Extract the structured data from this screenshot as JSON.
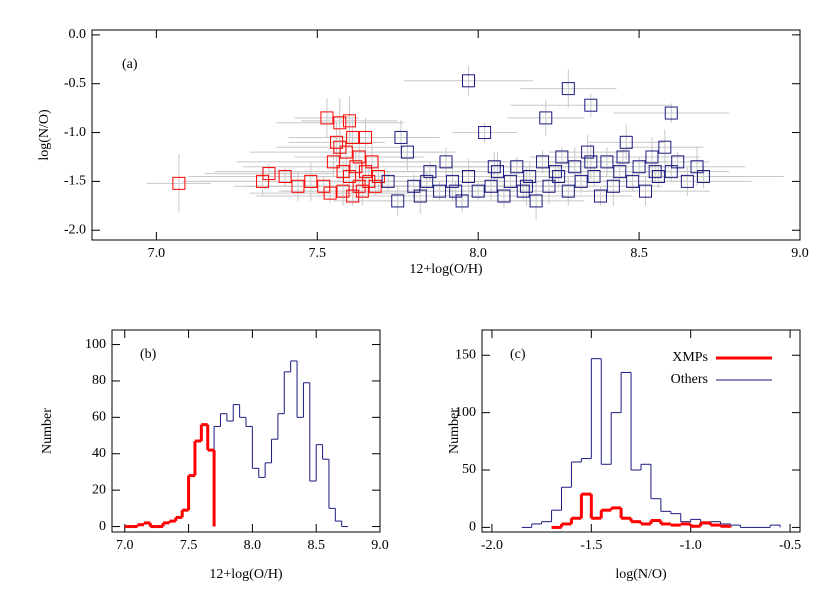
{
  "chart_data": [
    {
      "type": "scatter",
      "panel_label": "(a)",
      "x_label": "12+log(O/H)",
      "y_label": "log(N/O)",
      "xlim": [
        6.8,
        9.0
      ],
      "ylim": [
        -2.1,
        0.05
      ],
      "xticks": [
        {
          "value": 7.0,
          "label": "7.0"
        },
        7.5,
        {
          "value": 8.0,
          "label": "8.0"
        },
        8.5,
        {
          "value": 9.0,
          "label": "9.0"
        }
      ],
      "yticks": [
        {
          "value": 0,
          "label": "0.0"
        },
        -0.5,
        {
          "value": -1.0,
          "label": "-1.0"
        },
        -1.5,
        {
          "value": -2.0,
          "label": "-2.0"
        }
      ],
      "error_color": "#c8c8c8",
      "series": [
        {
          "name": "XMPs",
          "color": "#ff0000",
          "x": [
            7.07,
            7.33,
            7.35,
            7.4,
            7.44,
            7.48,
            7.52,
            7.53,
            7.55,
            7.56,
            7.57,
            7.58,
            7.58,
            7.59,
            7.6,
            7.6,
            7.61,
            7.62,
            7.63,
            7.63,
            7.64,
            7.65,
            7.66,
            7.67,
            7.68,
            7.69,
            7.54,
            7.57,
            7.61,
            7.65
          ],
          "values": [
            -1.52,
            -1.5,
            -1.42,
            -1.45,
            -1.55,
            -1.5,
            -1.55,
            -0.85,
            -1.3,
            -1.1,
            -0.9,
            -1.4,
            -1.6,
            -1.2,
            -0.88,
            -1.45,
            -1.05,
            -1.35,
            -1.55,
            -1.25,
            -1.6,
            -1.4,
            -1.5,
            -1.3,
            -1.55,
            -1.45,
            -1.62,
            -1.15,
            -1.65,
            -1.05
          ],
          "xerr": [
            0.1,
            0.25,
            0.2,
            0.3,
            0.2,
            0.35,
            0.25,
            0.1,
            0.3,
            0.15,
            0.2,
            0.4,
            0.2,
            0.3,
            0.15,
            0.25,
            0.2,
            0.35,
            0.3,
            0.2,
            0.25,
            0.3,
            0.2,
            0.15,
            0.3,
            0.2,
            0.25,
            0.2,
            0.3,
            0.15
          ],
          "yerr": [
            0.3,
            0.15,
            0.1,
            0.1,
            0.15,
            0.2,
            0.1,
            0.2,
            0.15,
            0.2,
            0.25,
            0.1,
            0.15,
            0.2,
            0.25,
            0.1,
            0.2,
            0.15,
            0.1,
            0.2,
            0.15,
            0.1,
            0.15,
            0.2,
            0.1,
            0.15,
            0.1,
            0.2,
            0.1,
            0.2
          ]
        },
        {
          "name": "Others",
          "color": "#1a1a80",
          "x": [
            7.72,
            7.75,
            7.78,
            7.8,
            7.82,
            7.85,
            7.88,
            7.9,
            7.92,
            7.95,
            7.97,
            8.0,
            8.02,
            8.04,
            8.06,
            8.08,
            8.1,
            8.12,
            8.14,
            8.16,
            8.18,
            8.2,
            8.22,
            8.24,
            8.26,
            8.28,
            8.3,
            8.32,
            8.34,
            8.36,
            8.38,
            8.4,
            8.42,
            8.44,
            8.46,
            8.48,
            8.5,
            8.52,
            8.54,
            8.56,
            8.58,
            8.6,
            8.62,
            8.65,
            8.68,
            8.7,
            7.76,
            7.84,
            7.93,
            8.05,
            8.15,
            8.25,
            8.35,
            8.45,
            8.55,
            7.97,
            8.28,
            8.35,
            8.21,
            8.6
          ],
          "values": [
            -1.5,
            -1.7,
            -1.2,
            -1.55,
            -1.65,
            -1.4,
            -1.6,
            -1.3,
            -1.5,
            -1.7,
            -1.45,
            -1.6,
            -1.0,
            -1.55,
            -1.4,
            -1.65,
            -1.5,
            -1.35,
            -1.6,
            -1.45,
            -1.7,
            -1.3,
            -1.55,
            -1.4,
            -1.25,
            -1.6,
            -1.35,
            -1.5,
            -1.2,
            -1.45,
            -1.65,
            -1.3,
            -1.55,
            -1.4,
            -1.1,
            -1.5,
            -1.35,
            -1.6,
            -1.25,
            -1.45,
            -1.15,
            -1.4,
            -1.3,
            -1.5,
            -1.35,
            -1.45,
            -1.05,
            -1.5,
            -1.6,
            -1.35,
            -1.55,
            -1.45,
            -1.3,
            -1.25,
            -1.4,
            -0.47,
            -0.55,
            -0.72,
            -0.85,
            -0.8
          ],
          "xerr": [
            0.1,
            0.2,
            0.15,
            0.25,
            0.12,
            0.18,
            0.1,
            0.2,
            0.15,
            0.25,
            0.12,
            0.18,
            0.1,
            0.2,
            0.15,
            0.25,
            0.12,
            0.18,
            0.1,
            0.2,
            0.15,
            0.25,
            0.12,
            0.18,
            0.1,
            0.2,
            0.15,
            0.25,
            0.12,
            0.18,
            0.1,
            0.2,
            0.15,
            0.25,
            0.12,
            0.18,
            0.1,
            0.2,
            0.15,
            0.25,
            0.12,
            0.18,
            0.1,
            0.2,
            0.15,
            0.25,
            0.12,
            0.18,
            0.1,
            0.2,
            0.15,
            0.25,
            0.12,
            0.18,
            0.1,
            0.2,
            0.15,
            0.25,
            0.12,
            0.18
          ],
          "yerr": [
            0.1,
            0.15,
            0.2,
            0.12,
            0.18,
            0.1,
            0.1,
            0.15,
            0.2,
            0.12,
            0.18,
            0.1,
            0.1,
            0.15,
            0.2,
            0.12,
            0.18,
            0.1,
            0.1,
            0.15,
            0.2,
            0.12,
            0.18,
            0.1,
            0.1,
            0.15,
            0.2,
            0.12,
            0.18,
            0.1,
            0.1,
            0.15,
            0.2,
            0.12,
            0.18,
            0.1,
            0.1,
            0.15,
            0.2,
            0.12,
            0.18,
            0.1,
            0.1,
            0.15,
            0.2,
            0.12,
            0.18,
            0.1,
            0.1,
            0.15,
            0.2,
            0.12,
            0.18,
            0.1,
            0.1,
            0.15,
            0.2,
            0.12,
            0.18,
            0.1
          ]
        }
      ]
    },
    {
      "type": "histogram",
      "panel_label": "(b)",
      "x_label": "12+log(O/H)",
      "y_label": "Number",
      "xlim": [
        6.9,
        9.0
      ],
      "ylim": [
        -3,
        108
      ],
      "xticks": [
        {
          "value": 7.0,
          "label": "7.0"
        },
        7.5,
        {
          "value": 8.0,
          "label": "8.0"
        },
        8.5,
        {
          "value": 9.0,
          "label": "9.0"
        }
      ],
      "yticks": [
        0,
        20,
        40,
        60,
        80,
        100
      ],
      "series": [
        {
          "name": "XMPs",
          "color": "#ff0000",
          "width": 3,
          "bins": [
            7.0,
            7.05,
            7.1,
            7.15,
            7.2,
            7.25,
            7.3,
            7.35,
            7.4,
            7.45,
            7.5,
            7.55,
            7.6,
            7.65,
            7.7
          ],
          "values": [
            0,
            0,
            1,
            2,
            0,
            0,
            2,
            3,
            5,
            9,
            28,
            47,
            56,
            42
          ]
        },
        {
          "name": "Others",
          "color": "#1a1a80",
          "width": 1,
          "bins": [
            7.7,
            7.75,
            7.8,
            7.85,
            7.9,
            7.95,
            8.0,
            8.05,
            8.1,
            8.15,
            8.2,
            8.25,
            8.3,
            8.35,
            8.4,
            8.45,
            8.5,
            8.55,
            8.6,
            8.65,
            8.7,
            8.75
          ],
          "values": [
            55,
            62,
            58,
            67,
            60,
            55,
            32,
            27,
            35,
            48,
            62,
            85,
            91,
            60,
            79,
            25,
            45,
            37,
            10,
            3,
            0
          ]
        }
      ]
    },
    {
      "type": "histogram",
      "panel_label": "(c)",
      "x_label": "log(N/O)",
      "y_label": "Number",
      "legend": "top-right",
      "xlim": [
        -2.05,
        -0.45
      ],
      "ylim": [
        -4,
        172
      ],
      "xticks": [
        {
          "value": -2.0,
          "label": "-2.0"
        },
        -1.5,
        {
          "value": -1.0,
          "label": "-1.0"
        },
        -0.5
      ],
      "yticks": [
        0,
        50,
        100,
        150
      ],
      "series": [
        {
          "name": "XMPs",
          "color": "#ff0000",
          "width": 3,
          "bins": [
            -1.7,
            -1.65,
            -1.6,
            -1.55,
            -1.5,
            -1.45,
            -1.4,
            -1.35,
            -1.3,
            -1.25,
            -1.2,
            -1.15,
            -1.1,
            -1.05,
            -1.0,
            -0.95,
            -0.9,
            -0.85,
            -0.8
          ],
          "values": [
            0,
            3,
            8,
            29,
            8,
            15,
            17,
            8,
            5,
            3,
            6,
            3,
            2,
            3,
            1,
            4,
            2,
            1
          ]
        },
        {
          "name": "Others",
          "color": "#1a1a80",
          "width": 1,
          "bins": [
            -1.85,
            -1.8,
            -1.75,
            -1.7,
            -1.65,
            -1.6,
            -1.55,
            -1.5,
            -1.45,
            -1.4,
            -1.35,
            -1.3,
            -1.25,
            -1.2,
            -1.15,
            -1.1,
            -1.05,
            -1.0,
            -0.95,
            -0.9,
            -0.85,
            -0.8,
            -0.75,
            -0.7,
            -0.65,
            -0.6,
            -0.55
          ],
          "values": [
            0,
            3,
            5,
            15,
            35,
            57,
            60,
            147,
            55,
            100,
            135,
            50,
            55,
            25,
            14,
            12,
            5,
            7,
            3,
            5,
            3,
            2,
            0,
            0,
            0,
            2
          ]
        }
      ]
    }
  ]
}
